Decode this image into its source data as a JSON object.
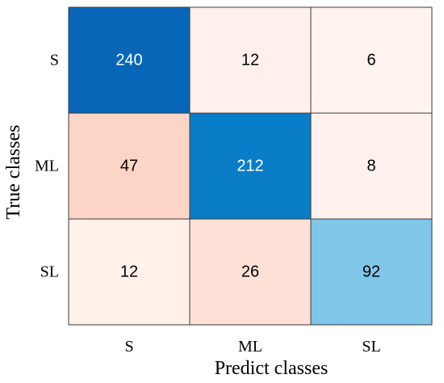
{
  "chart_data": {
    "type": "heatmap",
    "title": "",
    "xlabel": "Predict classes",
    "ylabel": "True classes",
    "x_categories": [
      "S",
      "ML",
      "SL"
    ],
    "y_categories": [
      "S",
      "ML",
      "SL"
    ],
    "values": [
      [
        240,
        12,
        6
      ],
      [
        47,
        212,
        8
      ],
      [
        12,
        26,
        92
      ]
    ],
    "cell_colors": [
      [
        "#0766b8",
        "#fff0eb",
        "#fff3ef"
      ],
      [
        "#fdd5c6",
        "#0a7dc8",
        "#fff1ed"
      ],
      [
        "#fff0ea",
        "#fee0d6",
        "#80c6e8"
      ]
    ],
    "text_colors": [
      [
        "#ffffff",
        "#000000",
        "#000000"
      ],
      [
        "#000000",
        "#ffffff",
        "#000000"
      ],
      [
        "#000000",
        "#000000",
        "#000000"
      ]
    ],
    "grid_color": "#3a3a3a",
    "colorbar": false
  }
}
